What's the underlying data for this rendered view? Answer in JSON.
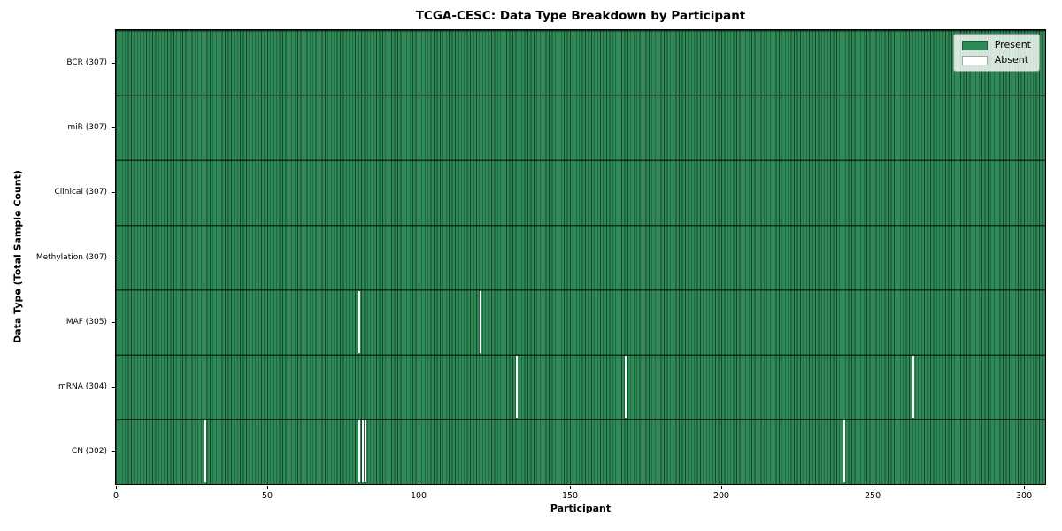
{
  "chart_data": {
    "type": "heatmap",
    "title": "TCGA-CESC: Data Type Breakdown by Participant",
    "xlabel": "Participant",
    "ylabel": "Data Type (Total Sample Count)",
    "x_ticks": [
      0,
      50,
      100,
      150,
      200,
      250,
      300
    ],
    "xlim": [
      0,
      307
    ],
    "n_participants": 307,
    "rows": [
      {
        "label": "BCR (307)",
        "name": "BCR",
        "present_count": 307,
        "absent_participants": []
      },
      {
        "label": "miR (307)",
        "name": "miR",
        "present_count": 307,
        "absent_participants": []
      },
      {
        "label": "Clinical (307)",
        "name": "Clinical",
        "present_count": 307,
        "absent_participants": []
      },
      {
        "label": "Methylation (307)",
        "name": "Methylation",
        "present_count": 307,
        "absent_participants": []
      },
      {
        "label": "MAF (305)",
        "name": "MAF",
        "present_count": 305,
        "absent_participants": [
          80,
          120
        ]
      },
      {
        "label": "mRNA (304)",
        "name": "mRNA",
        "present_count": 304,
        "absent_participants": [
          132,
          168,
          263
        ]
      },
      {
        "label": "CN (302)",
        "name": "CN",
        "present_count": 302,
        "absent_participants": [
          29,
          80,
          81,
          82,
          240
        ]
      }
    ],
    "legend": {
      "position": "upper right",
      "entries": [
        {
          "label": "Present",
          "color": "#2e8b57"
        },
        {
          "label": "Absent",
          "color": "#ffffff"
        }
      ]
    },
    "colors": {
      "present": "#2e8b57",
      "absent": "#ffffff",
      "bar_edge": "rgba(0,0,0,0.5)",
      "row_divider": "rgba(0,0,0,0.65)",
      "background": "#ffffff"
    },
    "grid": false
  }
}
